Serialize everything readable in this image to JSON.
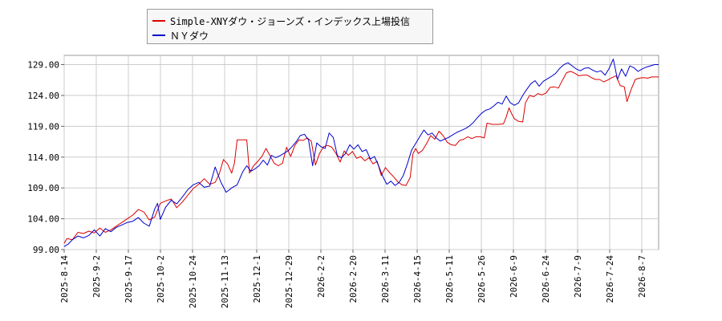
{
  "chart_data": {
    "type": "line",
    "title": "",
    "xlabel": "",
    "ylabel": "",
    "ylim": [
      99,
      130.5
    ],
    "y_ticks": [
      "129.00",
      "124.00",
      "119.00",
      "114.00",
      "109.00",
      "104.00",
      "99.00"
    ],
    "y_tick_values": [
      129,
      124,
      119,
      114,
      109,
      104,
      99
    ],
    "x_ticks": [
      "2025-8-14",
      "2025-9-2",
      "2025-9-17",
      "2025-10-2",
      "2025-10-24",
      "2025-11-13",
      "2025-12-1",
      "2025-12-29",
      "2026-2-2",
      "2026-2-20",
      "2026-3-11",
      "2026-4-15",
      "2026-5-11",
      "2026-5-26",
      "2026-6-9",
      "2026-6-24",
      "2026-7-9",
      "2026-7-24",
      "2026-8-7"
    ],
    "grid": true,
    "legend_position": "top-left",
    "series": [
      {
        "name": "Simple-XNYダウ・ジョーンズ・インデックス上場投信",
        "color": "#dd0000",
        "points": [
          [
            0,
            100.0
          ],
          [
            2,
            100.8
          ],
          [
            6,
            100.6
          ],
          [
            10,
            101.8
          ],
          [
            14,
            101.6
          ],
          [
            18,
            102.0
          ],
          [
            22,
            101.7
          ],
          [
            26,
            102.5
          ],
          [
            30,
            101.8
          ],
          [
            34,
            102.2
          ],
          [
            38,
            102.8
          ],
          [
            42,
            103.4
          ],
          [
            46,
            104.0
          ],
          [
            50,
            104.6
          ],
          [
            54,
            105.5
          ],
          [
            58,
            105.1
          ],
          [
            62,
            103.8
          ],
          [
            66,
            104.3
          ],
          [
            70,
            106.5
          ],
          [
            74,
            106.9
          ],
          [
            78,
            107.2
          ],
          [
            82,
            105.8
          ],
          [
            86,
            106.7
          ],
          [
            90,
            107.8
          ],
          [
            94,
            108.9
          ],
          [
            98,
            109.6
          ],
          [
            102,
            110.5
          ],
          [
            106,
            109.6
          ],
          [
            110,
            109.9
          ],
          [
            113,
            111.3
          ],
          [
            116,
            113.6
          ],
          [
            119,
            112.9
          ],
          [
            122,
            111.4
          ],
          [
            124,
            113.0
          ],
          [
            126,
            116.8
          ],
          [
            130,
            116.8
          ],
          [
            133,
            116.8
          ],
          [
            135,
            111.4
          ],
          [
            138,
            112.6
          ],
          [
            141,
            113.3
          ],
          [
            144,
            114.1
          ],
          [
            147,
            115.4
          ],
          [
            150,
            114.2
          ],
          [
            153,
            113.0
          ],
          [
            156,
            112.6
          ],
          [
            159,
            113.0
          ],
          [
            162,
            115.6
          ],
          [
            165,
            114.1
          ],
          [
            168,
            115.9
          ],
          [
            171,
            116.8
          ],
          [
            174,
            116.7
          ],
          [
            177,
            117.1
          ],
          [
            180,
            116.6
          ],
          [
            183,
            112.7
          ],
          [
            186,
            114.6
          ],
          [
            189,
            115.7
          ],
          [
            192,
            115.9
          ],
          [
            195,
            115.6
          ],
          [
            198,
            114.6
          ],
          [
            201,
            113.2
          ],
          [
            204,
            115.0
          ],
          [
            207,
            114.3
          ],
          [
            210,
            114.9
          ],
          [
            213,
            113.8
          ],
          [
            216,
            114.1
          ],
          [
            219,
            113.4
          ],
          [
            222,
            113.9
          ],
          [
            225,
            112.9
          ],
          [
            228,
            113.3
          ],
          [
            231,
            111.0
          ],
          [
            234,
            112.3
          ],
          [
            237,
            111.5
          ],
          [
            240,
            110.8
          ],
          [
            243,
            110.0
          ],
          [
            246,
            109.5
          ],
          [
            249,
            109.4
          ],
          [
            252,
            110.7
          ],
          [
            254,
            114.5
          ],
          [
            256,
            115.4
          ],
          [
            258,
            114.6
          ],
          [
            261,
            115.1
          ],
          [
            264,
            116.2
          ],
          [
            267,
            117.5
          ],
          [
            270,
            116.9
          ],
          [
            273,
            118.2
          ],
          [
            276,
            117.5
          ],
          [
            279,
            116.4
          ],
          [
            282,
            116.0
          ],
          [
            285,
            115.9
          ],
          [
            288,
            116.7
          ],
          [
            291,
            116.9
          ],
          [
            294,
            117.3
          ],
          [
            297,
            117.0
          ],
          [
            300,
            117.3
          ],
          [
            303,
            117.3
          ],
          [
            306,
            117.1
          ],
          [
            308,
            119.5
          ],
          [
            312,
            119.3
          ],
          [
            316,
            119.3
          ],
          [
            320,
            119.4
          ],
          [
            322,
            120.5
          ],
          [
            324,
            122.0
          ],
          [
            326,
            121.0
          ],
          [
            328,
            120.2
          ],
          [
            331,
            119.8
          ],
          [
            334,
            119.7
          ],
          [
            336,
            122.8
          ],
          [
            339,
            124.0
          ],
          [
            342,
            123.8
          ],
          [
            345,
            124.3
          ],
          [
            348,
            124.1
          ],
          [
            351,
            124.4
          ],
          [
            354,
            125.3
          ],
          [
            357,
            125.4
          ],
          [
            360,
            125.2
          ],
          [
            363,
            126.5
          ],
          [
            366,
            127.7
          ],
          [
            369,
            127.9
          ],
          [
            372,
            127.6
          ],
          [
            375,
            127.2
          ],
          [
            378,
            127.3
          ],
          [
            381,
            127.3
          ],
          [
            384,
            126.9
          ],
          [
            387,
            126.6
          ],
          [
            390,
            126.6
          ],
          [
            393,
            126.2
          ],
          [
            396,
            126.5
          ],
          [
            399,
            126.9
          ],
          [
            402,
            127.2
          ],
          [
            405,
            125.6
          ],
          [
            408,
            125.4
          ],
          [
            410,
            123.0
          ],
          [
            413,
            125.0
          ],
          [
            416,
            126.6
          ],
          [
            419,
            126.8
          ],
          [
            422,
            126.9
          ],
          [
            425,
            126.8
          ],
          [
            428,
            127.0
          ],
          [
            431,
            127.0
          ],
          [
            433,
            127.0
          ]
        ]
      },
      {
        "name": "ＮＹダウ",
        "color": "#0000cc",
        "points": [
          [
            0,
            99.5
          ],
          [
            3,
            99.9
          ],
          [
            6,
            100.6
          ],
          [
            10,
            101.2
          ],
          [
            14,
            100.9
          ],
          [
            18,
            101.3
          ],
          [
            22,
            102.2
          ],
          [
            26,
            101.2
          ],
          [
            30,
            102.4
          ],
          [
            34,
            101.9
          ],
          [
            38,
            102.6
          ],
          [
            42,
            103.0
          ],
          [
            46,
            103.4
          ],
          [
            50,
            103.6
          ],
          [
            54,
            104.2
          ],
          [
            58,
            103.3
          ],
          [
            62,
            102.8
          ],
          [
            66,
            105.6
          ],
          [
            68,
            106.5
          ],
          [
            70,
            103.9
          ],
          [
            74,
            105.9
          ],
          [
            78,
            107.0
          ],
          [
            82,
            106.4
          ],
          [
            86,
            107.5
          ],
          [
            90,
            108.7
          ],
          [
            94,
            109.5
          ],
          [
            98,
            109.9
          ],
          [
            102,
            109.1
          ],
          [
            106,
            109.3
          ],
          [
            110,
            112.4
          ],
          [
            114,
            110.0
          ],
          [
            118,
            108.3
          ],
          [
            122,
            109.0
          ],
          [
            126,
            109.5
          ],
          [
            130,
            111.6
          ],
          [
            133,
            112.6
          ],
          [
            136,
            111.7
          ],
          [
            139,
            112.1
          ],
          [
            142,
            112.6
          ],
          [
            145,
            113.5
          ],
          [
            148,
            112.7
          ],
          [
            151,
            114.3
          ],
          [
            154,
            113.9
          ],
          [
            157,
            114.2
          ],
          [
            160,
            114.6
          ],
          [
            163,
            115.0
          ],
          [
            166,
            115.7
          ],
          [
            169,
            116.5
          ],
          [
            172,
            117.5
          ],
          [
            175,
            117.7
          ],
          [
            178,
            116.8
          ],
          [
            181,
            112.6
          ],
          [
            184,
            116.3
          ],
          [
            187,
            115.7
          ],
          [
            190,
            115.4
          ],
          [
            193,
            117.9
          ],
          [
            196,
            117.2
          ],
          [
            199,
            114.2
          ],
          [
            202,
            113.9
          ],
          [
            205,
            114.6
          ],
          [
            208,
            116.0
          ],
          [
            211,
            115.3
          ],
          [
            214,
            116.0
          ],
          [
            217,
            114.9
          ],
          [
            220,
            115.2
          ],
          [
            223,
            113.7
          ],
          [
            226,
            114.1
          ],
          [
            229,
            112.6
          ],
          [
            232,
            110.9
          ],
          [
            235,
            109.6
          ],
          [
            238,
            110.1
          ],
          [
            241,
            109.4
          ],
          [
            244,
            109.9
          ],
          [
            247,
            111.0
          ],
          [
            250,
            112.9
          ],
          [
            253,
            115.1
          ],
          [
            256,
            116.2
          ],
          [
            259,
            117.3
          ],
          [
            262,
            118.4
          ],
          [
            265,
            117.6
          ],
          [
            268,
            117.9
          ],
          [
            271,
            117.1
          ],
          [
            274,
            116.6
          ],
          [
            277,
            116.9
          ],
          [
            280,
            117.2
          ],
          [
            283,
            117.6
          ],
          [
            286,
            118.0
          ],
          [
            289,
            118.3
          ],
          [
            292,
            118.6
          ],
          [
            295,
            119.0
          ],
          [
            298,
            119.6
          ],
          [
            301,
            120.4
          ],
          [
            304,
            121.1
          ],
          [
            307,
            121.6
          ],
          [
            310,
            121.8
          ],
          [
            313,
            122.3
          ],
          [
            316,
            122.9
          ],
          [
            319,
            122.6
          ],
          [
            322,
            123.9
          ],
          [
            325,
            122.8
          ],
          [
            328,
            122.4
          ],
          [
            331,
            122.8
          ],
          [
            334,
            124.0
          ],
          [
            337,
            125.0
          ],
          [
            340,
            125.9
          ],
          [
            343,
            126.4
          ],
          [
            346,
            125.5
          ],
          [
            349,
            126.3
          ],
          [
            352,
            126.7
          ],
          [
            355,
            127.1
          ],
          [
            358,
            127.6
          ],
          [
            361,
            128.4
          ],
          [
            364,
            129.0
          ],
          [
            367,
            129.3
          ],
          [
            370,
            128.8
          ],
          [
            373,
            128.3
          ],
          [
            376,
            128.0
          ],
          [
            379,
            128.4
          ],
          [
            382,
            128.5
          ],
          [
            385,
            128.1
          ],
          [
            388,
            127.8
          ],
          [
            391,
            128.0
          ],
          [
            394,
            127.3
          ],
          [
            397,
            128.4
          ],
          [
            400,
            129.9
          ],
          [
            403,
            126.6
          ],
          [
            406,
            128.3
          ],
          [
            409,
            127.1
          ],
          [
            412,
            128.8
          ],
          [
            415,
            128.5
          ],
          [
            418,
            127.9
          ],
          [
            421,
            128.3
          ],
          [
            424,
            128.6
          ],
          [
            427,
            128.8
          ],
          [
            430,
            129.0
          ],
          [
            433,
            129.0
          ]
        ]
      }
    ]
  }
}
